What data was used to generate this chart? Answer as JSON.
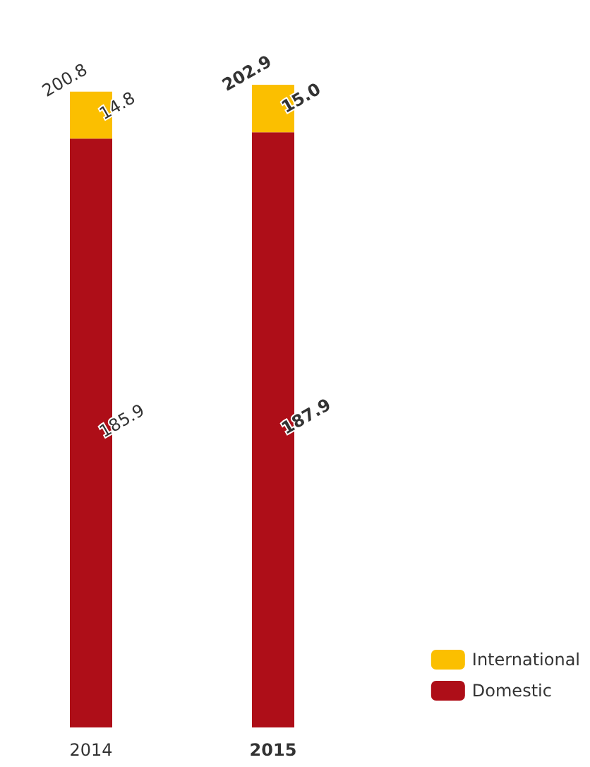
{
  "chart_data": {
    "type": "bar",
    "stacked": true,
    "categories": [
      "2014",
      "2015"
    ],
    "series": [
      {
        "name": "Domestic",
        "color": "#ae0e18",
        "values": [
          185.9,
          187.9
        ],
        "value_labels": [
          "185.9",
          "187.9"
        ]
      },
      {
        "name": "International",
        "color": "#fbbf00",
        "values": [
          14.8,
          15.0
        ],
        "value_labels": [
          "14.8",
          "15.0"
        ]
      }
    ],
    "totals": [
      "200.8",
      "202.9"
    ],
    "legend": "bottom right"
  }
}
